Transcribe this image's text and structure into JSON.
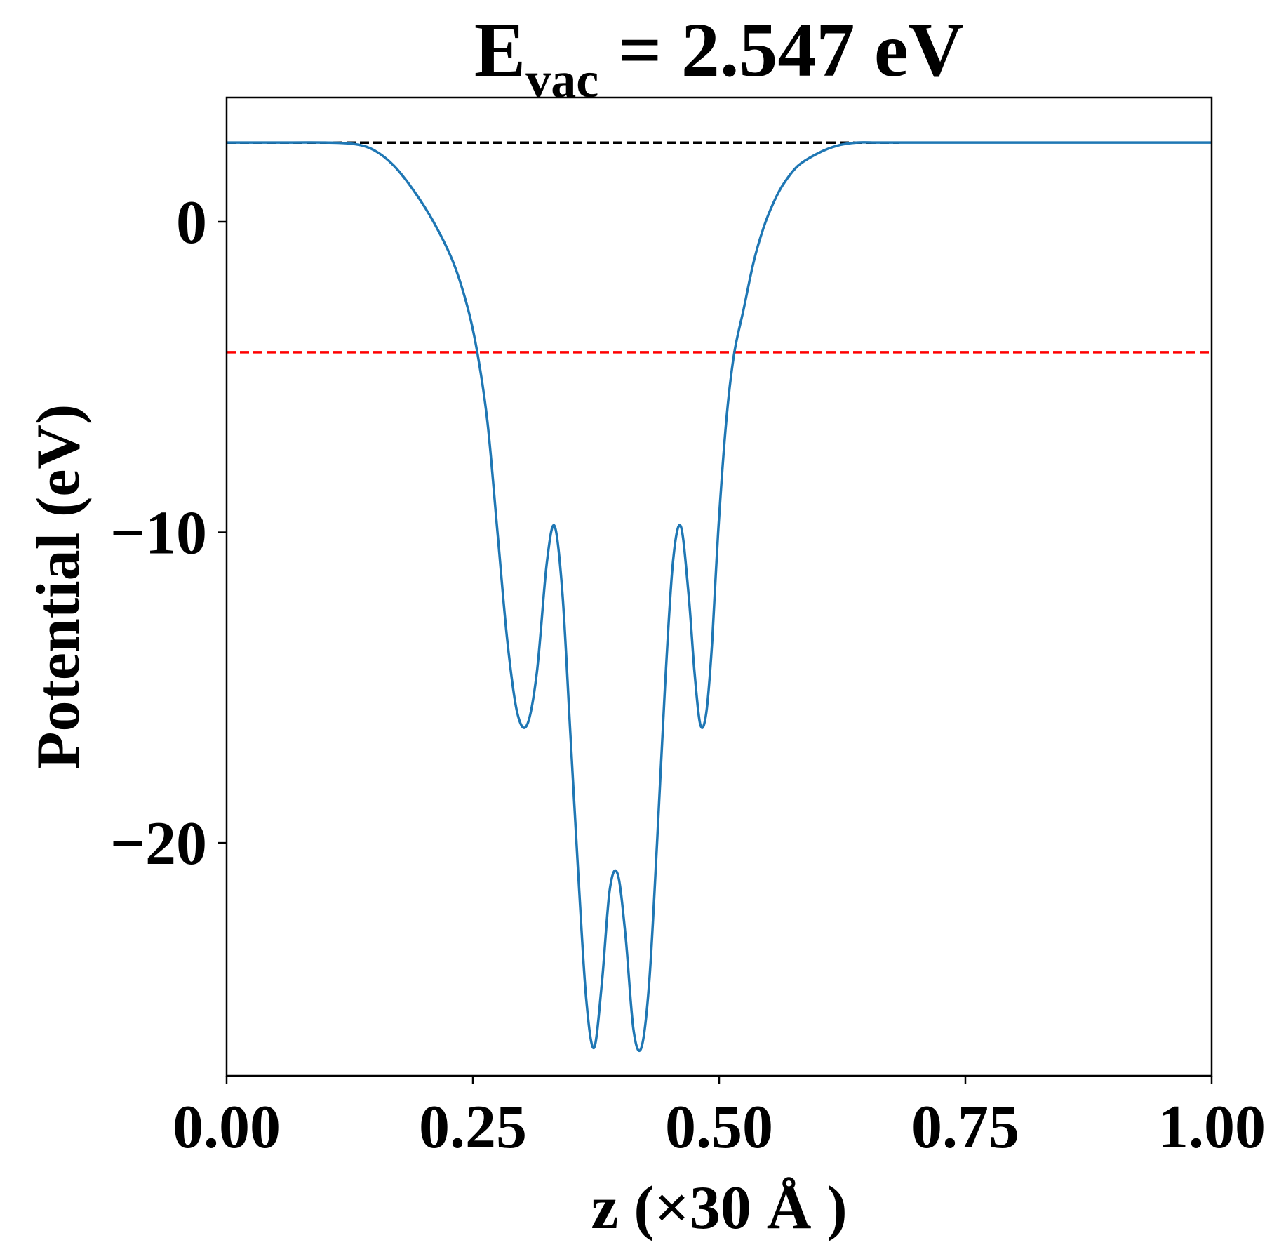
{
  "chart_data": {
    "type": "line",
    "title": {
      "symbol": "E",
      "subscript": "vac",
      "rest": " = 2.547 eV"
    },
    "xlabel": "z (×30 Å )",
    "ylabel": "Potential (eV)",
    "xlim": [
      0,
      1
    ],
    "ylim": [
      -27.5,
      4.0
    ],
    "xticks": [
      0.0,
      0.25,
      0.5,
      0.75,
      1.0
    ],
    "xtick_labels": [
      "0.00",
      "0.25",
      "0.50",
      "0.75",
      "1.00"
    ],
    "yticks": [
      0,
      -10,
      -20
    ],
    "ytick_labels": [
      "0",
      "−10",
      "−20"
    ],
    "grid": false,
    "colors": {
      "potential": "#1f77b4",
      "vacuum_line": "#000000",
      "fermi_line": "#ff0000"
    },
    "series": [
      {
        "x": [
          0.0,
          0.05,
          0.1,
          0.13,
          0.15,
          0.17,
          0.19,
          0.21,
          0.23,
          0.245,
          0.255,
          0.265,
          0.275,
          0.285,
          0.295,
          0.305,
          0.315,
          0.325,
          0.333,
          0.341,
          0.349,
          0.357,
          0.365,
          0.373,
          0.381,
          0.389,
          0.397,
          0.405,
          0.413,
          0.421,
          0.429,
          0.437,
          0.445,
          0.453,
          0.461,
          0.469,
          0.475,
          0.481,
          0.487,
          0.493,
          0.499,
          0.507,
          0.515,
          0.525,
          0.535,
          0.545,
          0.555,
          0.565,
          0.58,
          0.6,
          0.62,
          0.64,
          0.66,
          0.68,
          0.7,
          0.75,
          0.8,
          0.9,
          1.0
        ],
        "y": [
          2.55,
          2.55,
          2.55,
          2.5,
          2.3,
          1.8,
          1.0,
          0.0,
          -1.3,
          -2.8,
          -4.3,
          -6.5,
          -10.0,
          -13.5,
          -15.8,
          -16.2,
          -14.5,
          -11.0,
          -9.8,
          -12.0,
          -16.5,
          -21.0,
          -25.0,
          -26.6,
          -24.5,
          -21.5,
          -21.0,
          -23.0,
          -26.0,
          -26.6,
          -24.5,
          -20.0,
          -15.0,
          -11.0,
          -9.8,
          -12.0,
          -14.5,
          -16.2,
          -15.8,
          -13.5,
          -10.0,
          -6.5,
          -4.3,
          -2.8,
          -1.3,
          -0.2,
          0.6,
          1.2,
          1.8,
          2.2,
          2.45,
          2.55,
          2.55,
          2.55,
          2.55,
          2.55,
          2.55,
          2.55,
          2.55
        ]
      },
      {
        "y_const": 2.547,
        "x_range": [
          0,
          0.683
        ]
      },
      {
        "y_const": -4.2,
        "x_range": [
          0,
          1
        ]
      }
    ]
  }
}
